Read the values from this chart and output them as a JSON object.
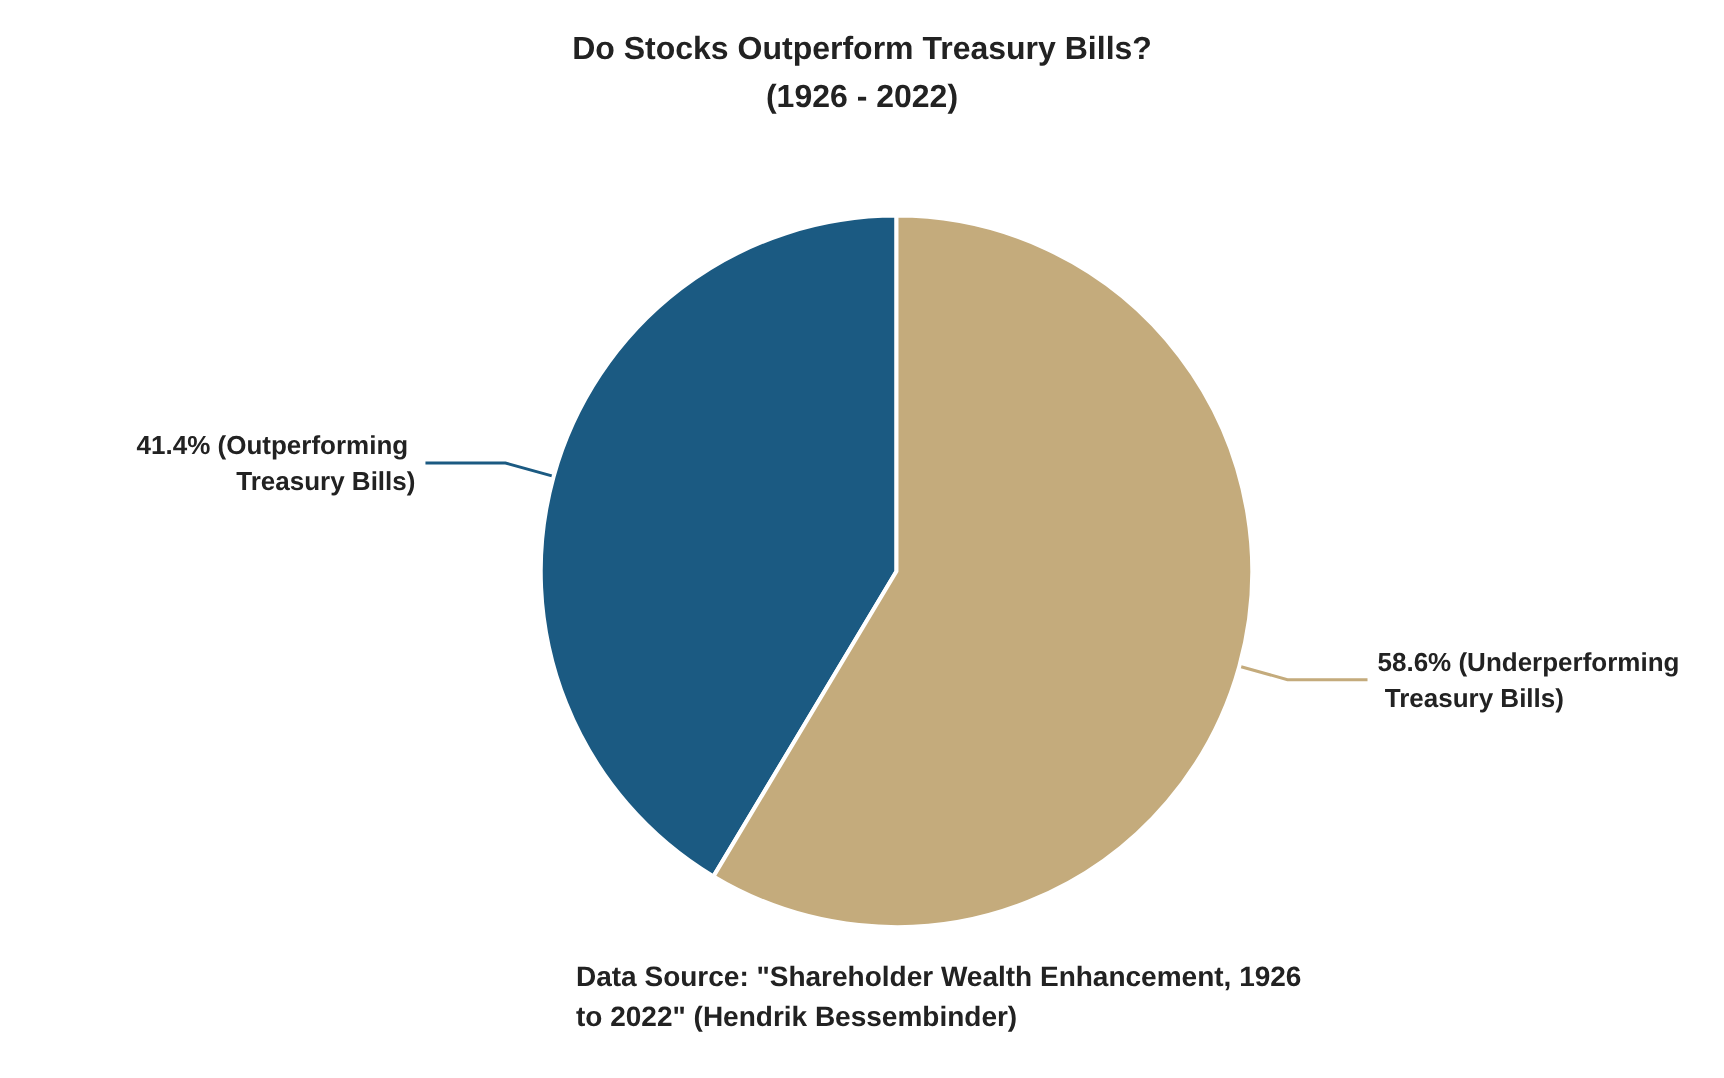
{
  "chart_data": {
    "type": "pie",
    "title": "Do Stocks Outperform Treasury Bills?\n(1926 - 2022)",
    "categories": [
      "(Outperforming Treasury Bills)",
      "(Underperforming Treasury Bills)"
    ],
    "values": [
      41.4,
      58.6
    ],
    "value_labels": [
      "41.4%",
      "58.6%"
    ],
    "colors": [
      "#1b5a82",
      "#c4ab7c"
    ],
    "annotations": [
      "Data Source: \"Shareholder Wealth Enhancement, 1926 to 2022\" (Hendrik Bessembinder)"
    ],
    "legend": false
  }
}
